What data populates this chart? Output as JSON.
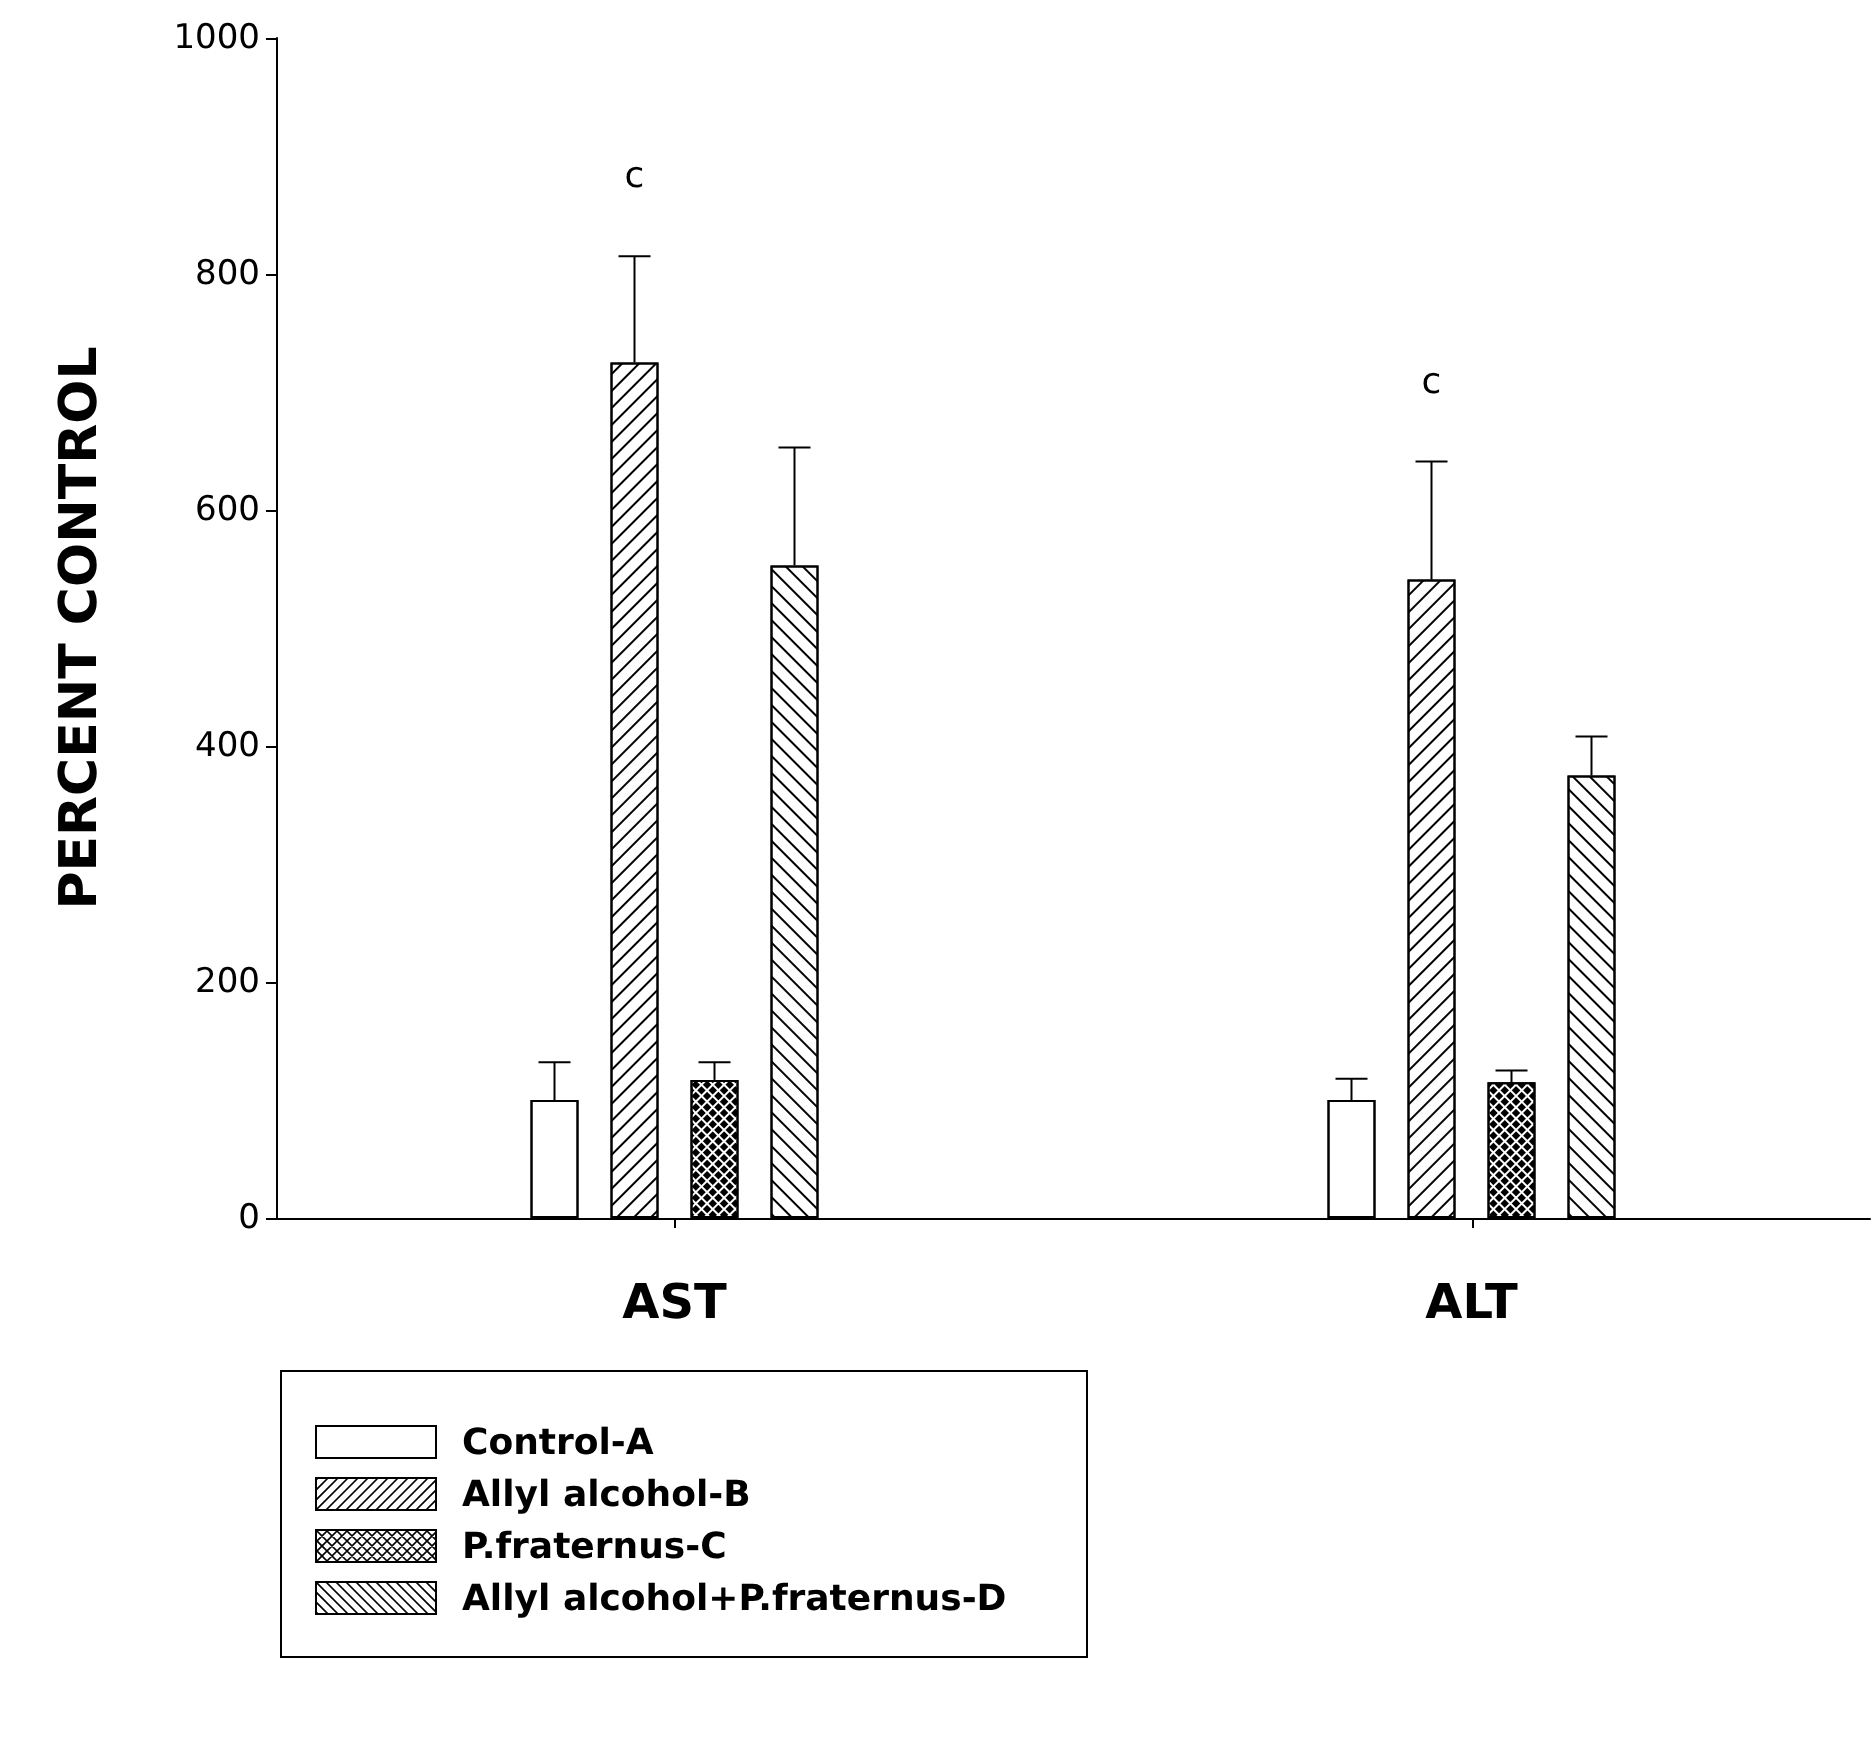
{
  "chart_data": {
    "type": "bar",
    "ylabel": "PERCENT CONTROL",
    "categories": [
      "AST",
      "ALT"
    ],
    "series": [
      {
        "name": "Control-A",
        "color": "#ffffff",
        "values": [
          100,
          100
        ],
        "errors": [
          32,
          18
        ]
      },
      {
        "name": "Allyl alcohol-B",
        "color": "#ffffff",
        "values": [
          725,
          541
        ],
        "errors": [
          90,
          100
        ]
      },
      {
        "name": "P.fraternus-C",
        "color": "#ffffff",
        "values": [
          117,
          115
        ],
        "errors": [
          15,
          10
        ]
      },
      {
        "name": "Allyl alcohol+P.fraternus-D",
        "color": "#ffffff",
        "values": [
          553,
          375
        ],
        "errors": [
          100,
          33
        ]
      }
    ],
    "annotations": [
      "c",
      "c"
    ],
    "ylim": [
      0,
      1000
    ],
    "yticks": [
      0,
      200,
      400,
      600,
      800,
      1000
    ],
    "grid": false,
    "legend": "bottom left"
  }
}
